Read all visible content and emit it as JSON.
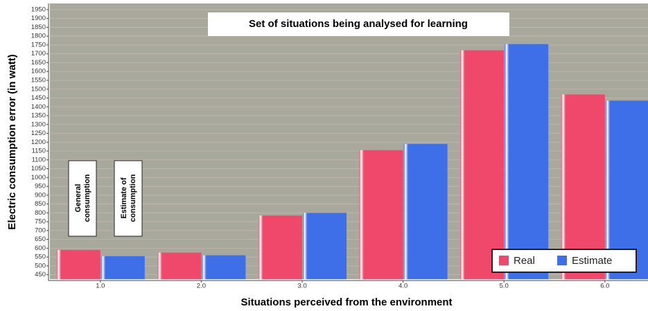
{
  "chart_data": {
    "type": "bar",
    "title": "Set of situations being analysed for learning",
    "xlabel": "Situations perceived from the environment",
    "ylabel": "Electric consumption error (in watt)",
    "categories": [
      "1.0",
      "2.0",
      "3.0",
      "4.0",
      "5.0",
      "6.0"
    ],
    "series": [
      {
        "name": "Real",
        "color": "#f0486a",
        "values": [
          590,
          575,
          785,
          1155,
          1720,
          1470
        ]
      },
      {
        "name": "Estimate",
        "color": "#3f6fe8",
        "values": [
          555,
          560,
          800,
          1190,
          1755,
          1435
        ]
      }
    ],
    "ylim": [
      425,
      1985
    ],
    "yticks": [
      450,
      500,
      550,
      600,
      650,
      700,
      750,
      800,
      850,
      900,
      950,
      1000,
      1050,
      1100,
      1150,
      1200,
      1250,
      1300,
      1350,
      1400,
      1450,
      1500,
      1550,
      1600,
      1650,
      1700,
      1750,
      1800,
      1850,
      1900,
      1950
    ],
    "grid": true,
    "legend": "lower right",
    "annotations": [
      {
        "lines": [
          "General",
          "consumption"
        ]
      },
      {
        "lines": [
          "Estimate of",
          "consumption"
        ]
      }
    ]
  }
}
